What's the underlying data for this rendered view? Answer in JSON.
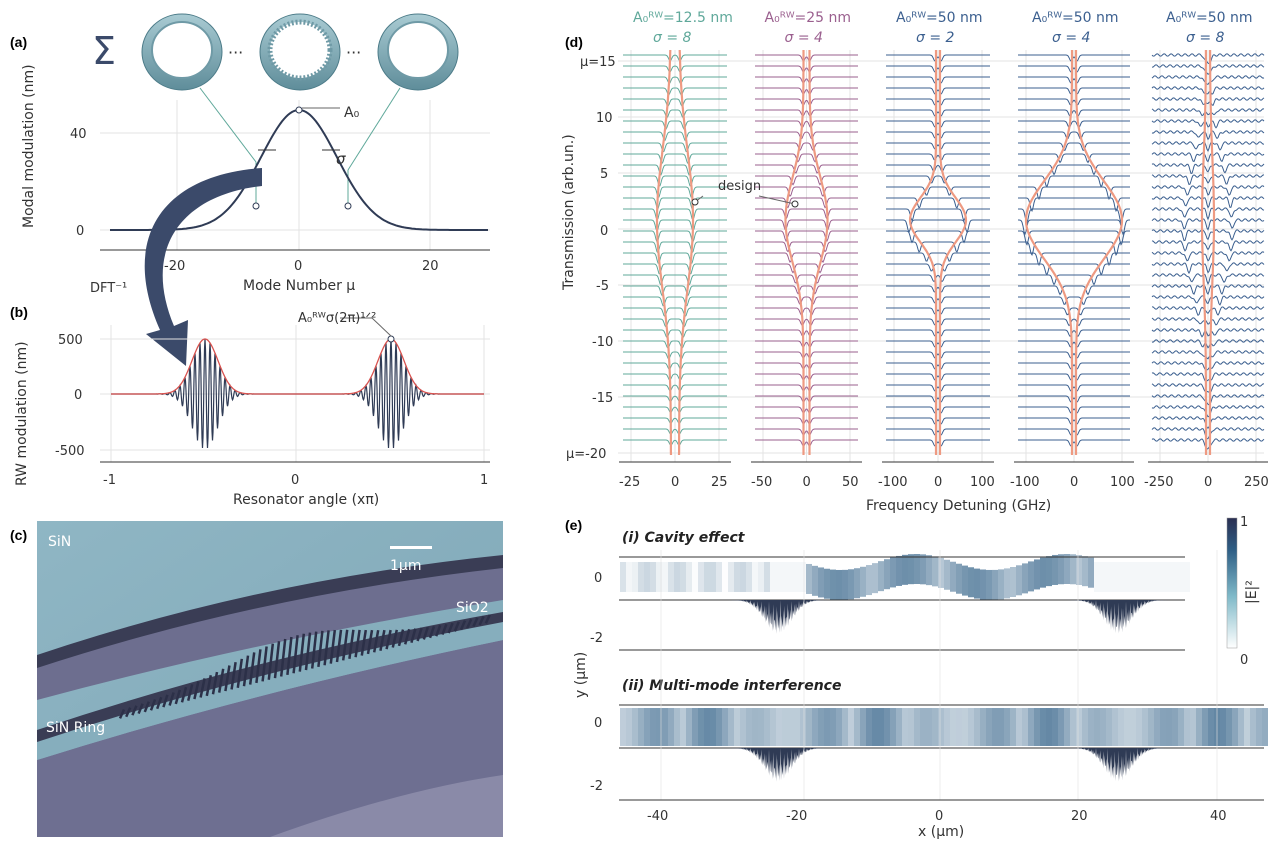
{
  "panel_labels": {
    "a": "(a)",
    "b": "(b)",
    "c": "(c)",
    "d": "(d)",
    "e": "(e)"
  },
  "panel_a": {
    "sum_symbol": "Σ",
    "ellipsis": "···",
    "ylabel": "Modal modulation (nm)",
    "xlabel": "Mode Number μ",
    "yticks": [
      "40",
      "0"
    ],
    "xticks": [
      "-20",
      "0",
      "20"
    ],
    "amp_label": "A₀",
    "width_label": "σ",
    "dft_label": "DFT⁻¹"
  },
  "panel_b": {
    "ylabel": "RW modulation (nm)",
    "xlabel": "Resonator angle (xπ)",
    "yticks": [
      "500",
      "0",
      "-500"
    ],
    "xticks": [
      "-1",
      "0",
      "1"
    ],
    "annotation": "A₀ᴿᵂσ(2π)¹ᐟ²"
  },
  "panel_c": {
    "label_sin": "SiN",
    "label_sio2": "SiO2",
    "label_ring": "SiN Ring",
    "scalebar": "1μm"
  },
  "panel_d": {
    "ylabel": "Transmission (arb.un.)",
    "xlabel": "Frequency Detuning (GHz)",
    "yticks": [
      "μ=15",
      "10",
      "5",
      "0",
      "-5",
      "-10",
      "-15",
      "μ=-20"
    ],
    "design_label": "design",
    "columns": [
      {
        "title_a": "A₀ᴿᵂ=12.5 nm",
        "title_s": "σ = 8",
        "color": "#5fa89a",
        "xticks": [
          "-25",
          "0",
          "25"
        ]
      },
      {
        "title_a": "A₀ᴿᵂ=25 nm",
        "title_s": "σ = 4",
        "color": "#9a5f8e",
        "xticks": [
          "-50",
          "0",
          "50"
        ]
      },
      {
        "title_a": "A₀ᴿᵂ=50 nm",
        "title_s": "σ = 2",
        "color": "#3b5f8f",
        "xticks": [
          "-100",
          "0",
          "100"
        ]
      },
      {
        "title_a": "A₀ᴿᵂ=50 nm",
        "title_s": "σ = 4",
        "color": "#3b5f8f",
        "xticks": [
          "-100",
          "0",
          "100"
        ]
      },
      {
        "title_a": "A₀ᴿᵂ=50 nm",
        "title_s": "σ = 8",
        "color": "#3b5f8f",
        "xticks": [
          "-250",
          "0",
          "250"
        ]
      }
    ]
  },
  "panel_e": {
    "title_i": "(i) Cavity effect",
    "title_ii": "(ii) Multi-mode interference",
    "ylabel": "y (μm)",
    "xlabel": "x (μm)",
    "yticks": [
      "0",
      "-2"
    ],
    "xticks": [
      "-40",
      "-20",
      "0",
      "20",
      "40"
    ],
    "colorbar_label": "|E|²",
    "colorbar_max": "1",
    "colorbar_min": "0"
  },
  "colors": {
    "navy": "#2f3b55",
    "salmon": "#ee9a82",
    "teal": "#5fa89a",
    "mauve": "#9a5f8e",
    "blue": "#3b5f8f",
    "red": "#d9534f"
  }
}
